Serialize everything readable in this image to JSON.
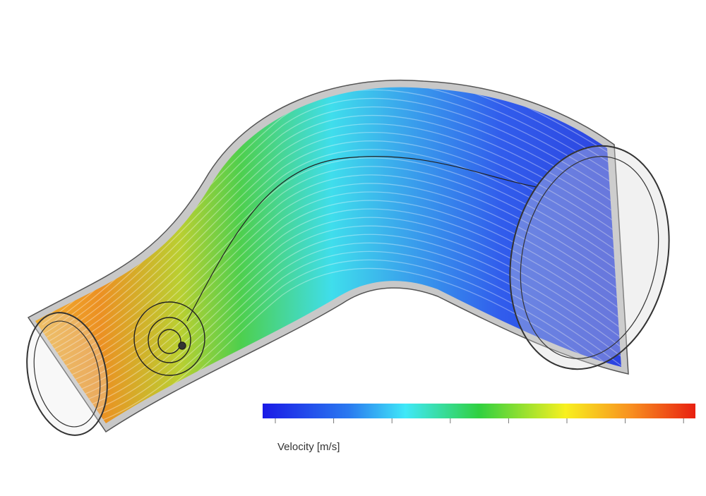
{
  "legend": {
    "label": "Velocity [m/s]"
  }
}
